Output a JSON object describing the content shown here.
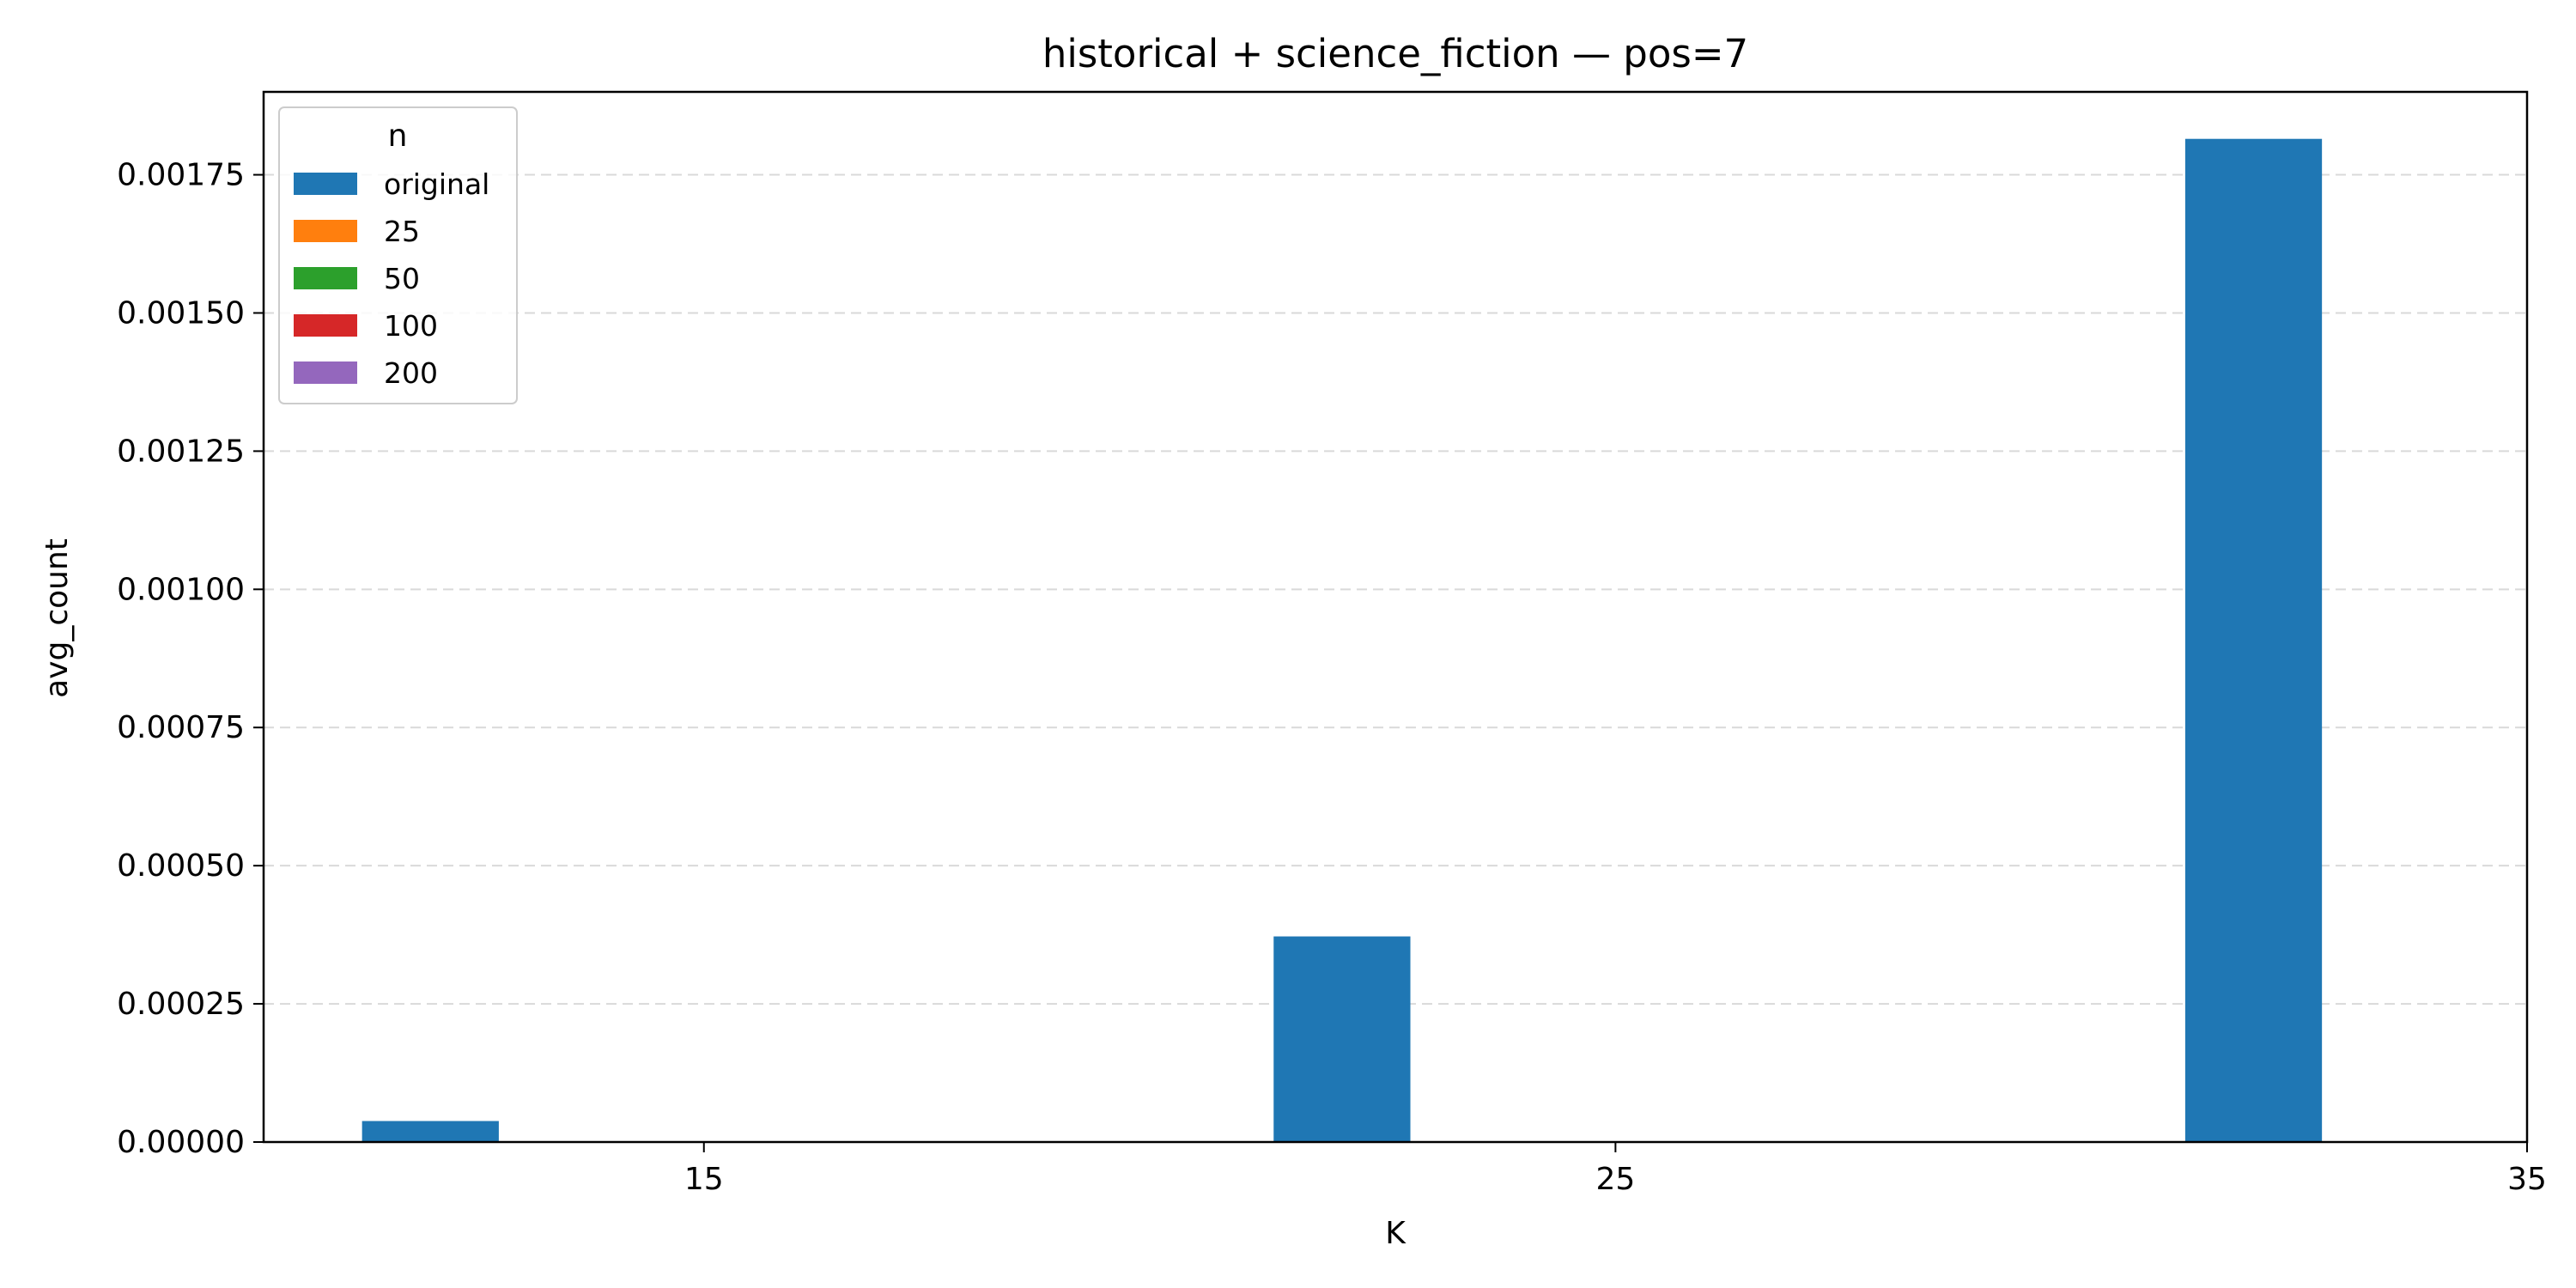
{
  "chart_data": {
    "type": "bar",
    "title": "historical + science_fiction — pos=7",
    "xlabel": "K",
    "ylabel": "avg_count",
    "x_ticks": [
      15,
      25,
      35
    ],
    "x_tick_labels": [
      "15",
      "25",
      "35"
    ],
    "xlim": [
      10.17,
      35
    ],
    "ylim": [
      0,
      0.0019
    ],
    "y_ticks": [
      0,
      0.00025,
      0.0005,
      0.00075,
      0.001,
      0.00125,
      0.0015,
      0.00175
    ],
    "y_tick_labels": [
      "0.00000",
      "0.00025",
      "0.00050",
      "0.00075",
      "0.00100",
      "0.00125",
      "0.00150",
      "0.00175"
    ],
    "grid": "horizontal dashed",
    "legend": {
      "title": "n",
      "position": "top-left"
    },
    "series": [
      {
        "name": "original",
        "color": "#1f77b4",
        "x": [
          12,
          22,
          32
        ],
        "values": [
          3.8e-05,
          0.000372,
          0.001815
        ]
      },
      {
        "name": "25",
        "color": "#ff7f0e",
        "x": [],
        "values": []
      },
      {
        "name": "50",
        "color": "#2ca02c",
        "x": [],
        "values": []
      },
      {
        "name": "100",
        "color": "#d62728",
        "x": [],
        "values": []
      },
      {
        "name": "200",
        "color": "#9467bd",
        "x": [],
        "values": []
      }
    ],
    "bar_width": 1.5
  }
}
